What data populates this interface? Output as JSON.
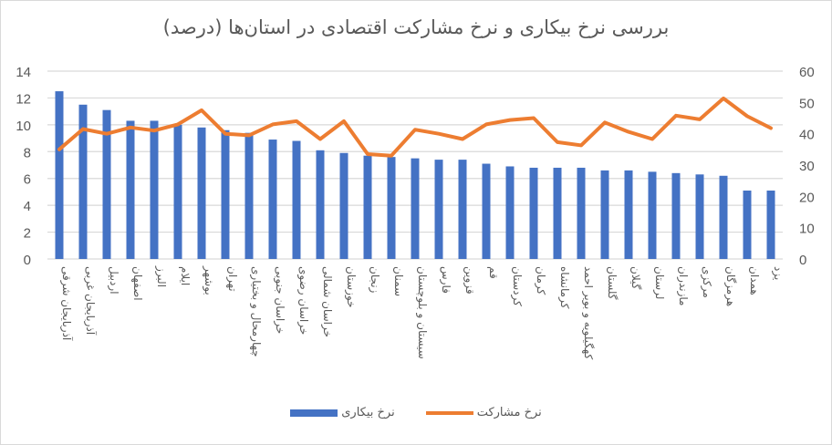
{
  "chart_data": {
    "type": "bar+line",
    "title": "بررسی نرخ بیکاری و نرخ مشارکت اقتصادی در استان‌ها (درصد)",
    "categories": [
      "آذربایجان شرقی",
      "آذربایجان غربی",
      "اردبیل",
      "اصفهان",
      "البرز",
      "ایلام",
      "بوشهر",
      "تهران",
      "چهارمحال و بختیاری",
      "خراسان جنوبی",
      "خراسان رضوی",
      "خراسان شمالی",
      "خوزستان",
      "زنجان",
      "سمنان",
      "سیستان و بلوچستان",
      "فارس",
      "قزوین",
      "قم",
      "کردستان",
      "کرمان",
      "کرمانشاه",
      "کهگیلویه و بویر احمد",
      "گلستان",
      "گیلان",
      "لرستان",
      "مازندران",
      "مرکزی",
      "هرمزگان",
      "همدان",
      "یزد"
    ],
    "series": [
      {
        "name": "نرخ بیکاری",
        "type": "bar",
        "axis": "left",
        "color": "#4472c4",
        "values": [
          12.5,
          11.5,
          11.1,
          10.3,
          10.3,
          10.0,
          9.8,
          9.6,
          9.4,
          8.9,
          8.8,
          8.1,
          7.9,
          7.7,
          7.6,
          7.5,
          7.4,
          7.4,
          7.1,
          6.9,
          6.8,
          6.8,
          6.8,
          6.6,
          6.6,
          6.5,
          6.4,
          6.3,
          6.2,
          5.1,
          5.1
        ]
      },
      {
        "name": "نرخ مشارکت",
        "type": "line",
        "axis": "right",
        "color": "#ed7d31",
        "values": [
          35.0,
          41.5,
          40.0,
          42.0,
          41.0,
          43.0,
          47.5,
          40.0,
          39.5,
          43.0,
          44.0,
          38.3,
          44.0,
          33.5,
          33.0,
          41.3,
          40.0,
          38.3,
          43.0,
          44.4,
          45.0,
          37.3,
          36.3,
          43.6,
          40.6,
          38.3,
          45.8,
          44.6,
          51.3,
          45.6,
          41.8
        ]
      }
    ],
    "left_axis": {
      "ticks": [
        "0",
        "2",
        "4",
        "6",
        "8",
        "10",
        "12",
        "14"
      ],
      "ylim": [
        0,
        14
      ]
    },
    "right_axis": {
      "ticks": [
        "0",
        "10",
        "20",
        "30",
        "40",
        "50",
        "60"
      ],
      "ylim": [
        0,
        60
      ]
    },
    "grid": true,
    "legend_position": "bottom",
    "xlabel": "",
    "ylabel": ""
  },
  "legend": {
    "line_label": "نرخ مشارکت",
    "bar_label": "نرخ بیکاری"
  }
}
